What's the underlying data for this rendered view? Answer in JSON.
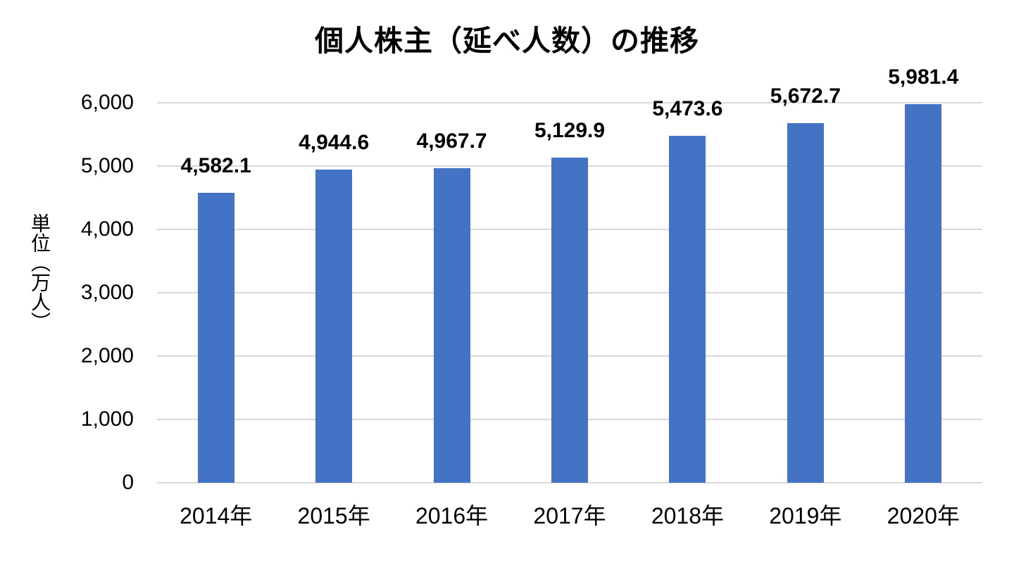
{
  "chart_data": {
    "type": "bar",
    "title": "個人株主（延べ人数）の推移",
    "ylabel": "単位（万人）",
    "xlabel": "",
    "categories": [
      "2014年",
      "2015年",
      "2016年",
      "2017年",
      "2018年",
      "2019年",
      "2020年"
    ],
    "values": [
      4582.1,
      4944.6,
      4967.7,
      5129.9,
      5473.6,
      5672.7,
      5981.4
    ],
    "value_labels": [
      "4,582.1",
      "4,944.6",
      "4,967.7",
      "5,129.9",
      "5,473.6",
      "5,672.7",
      "5,981.4"
    ],
    "ylim": [
      0,
      6000
    ],
    "y_ticks": [
      {
        "value": 0,
        "label": "0"
      },
      {
        "value": 1000,
        "label": "1,000"
      },
      {
        "value": 2000,
        "label": "2,000"
      },
      {
        "value": 3000,
        "label": "3,000"
      },
      {
        "value": 4000,
        "label": "4,000"
      },
      {
        "value": 5000,
        "label": "5,000"
      },
      {
        "value": 6000,
        "label": "6,000"
      }
    ],
    "grid": true,
    "legend": "none",
    "colors": {
      "bar": "#4472C4",
      "gridline": "#D9D9D9",
      "text": "#000000"
    }
  }
}
